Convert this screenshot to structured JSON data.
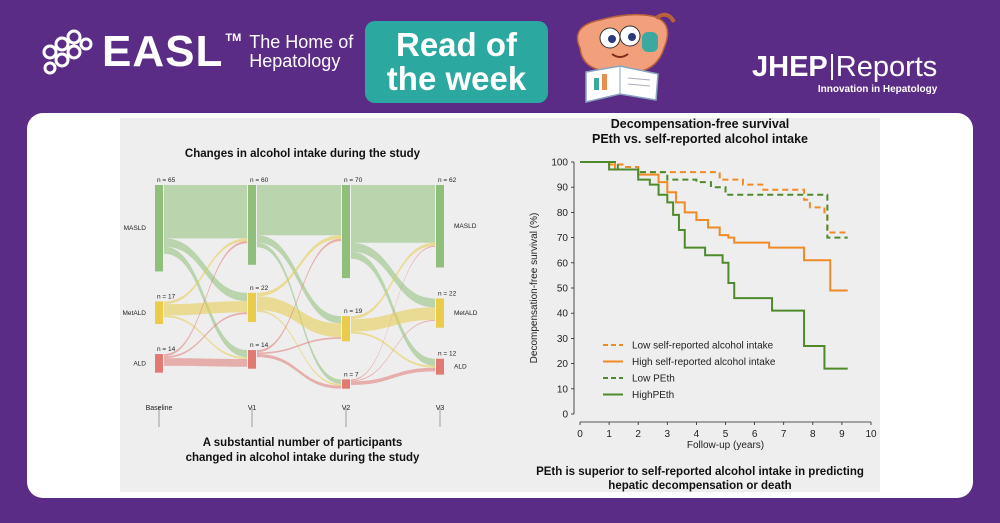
{
  "header": {
    "easl_word": "EASL",
    "easl_tm": "TM",
    "easl_tagline_line1": "The Home of",
    "easl_tagline_line2": "Hepatology",
    "badge_line1": "Read of",
    "badge_line2": "the week",
    "jhep_brand": "JHEP",
    "jhep_reports": "Reports",
    "jhep_subtitle": "Innovation in Hepatology"
  },
  "colors": {
    "background": "#5b2c86",
    "badge": "#2ba8a0",
    "masld": "#8fbf7a",
    "metald": "#e8cc4a",
    "ald": "#e07a72",
    "orange": "#f08a24",
    "green": "#4e8a2c"
  },
  "chart_data": [
    {
      "type": "sankey",
      "title": "Changes in alcohol intake during the study",
      "caption_line1": "A substantial number of participants",
      "caption_line2": "changed in alcohol intake during the study",
      "stages": [
        "Baseline",
        "V1",
        "V2",
        "V3"
      ],
      "groups": [
        "MASLD",
        "MetALD",
        "ALD"
      ],
      "counts": {
        "MASLD": [
          65,
          60,
          70,
          62
        ],
        "MetALD": [
          17,
          22,
          19,
          22
        ],
        "ALD": [
          14,
          14,
          7,
          12
        ]
      },
      "count_labels": {
        "MASLD": [
          "n = 65",
          "n = 60",
          "n = 70",
          "n = 62"
        ],
        "MetALD": [
          "n = 17",
          "n = 22",
          "n = 19",
          "n = 22"
        ],
        "ALD": [
          "n = 14",
          "n = 14",
          "n = 7",
          "n = 12"
        ]
      }
    },
    {
      "type": "line",
      "title_line1": "Decompensation-free survival",
      "title_line2": "PEth vs. self-reported alcohol intake",
      "caption_line1": "PEth is superior to self-reported alcohol intake in predicting",
      "caption_line2": "hepatic decompensation or death",
      "xlabel": "Follow-up (years)",
      "ylabel": "Decompensation-free survival (%)",
      "xlim": [
        0,
        10
      ],
      "ylim": [
        0,
        100
      ],
      "xticks": [
        0,
        1,
        2,
        3,
        4,
        5,
        6,
        7,
        8,
        9,
        10
      ],
      "yticks": [
        0,
        10,
        20,
        30,
        40,
        50,
        60,
        70,
        80,
        90,
        100
      ],
      "series": [
        {
          "name": "Low self-reported alcohol intake",
          "style": "dashed",
          "color": "#f08a24",
          "x": [
            0,
            0.9,
            1.0,
            1.5,
            2.0,
            3.3,
            4.8,
            5.0,
            5.6,
            6.3,
            7.7,
            7.9,
            8.4,
            8.5,
            9.2
          ],
          "y": [
            100,
            100,
            99,
            98,
            96,
            96,
            93,
            93,
            91,
            89,
            85,
            82,
            80,
            72,
            72
          ]
        },
        {
          "name": "High self-reported alcohol intake",
          "style": "solid",
          "color": "#f08a24",
          "x": [
            0,
            0.9,
            1.2,
            2.0,
            2.7,
            3.0,
            3.3,
            3.6,
            4.0,
            4.4,
            4.8,
            5.1,
            5.3,
            6.5,
            7.7,
            8.6,
            9.2
          ],
          "y": [
            100,
            100,
            97,
            95,
            92,
            88,
            84,
            80,
            77,
            74,
            71,
            70,
            68,
            66,
            61,
            49,
            49
          ]
        },
        {
          "name": "Low PEth",
          "style": "dashed",
          "color": "#4e8a2c",
          "x": [
            0,
            0.9,
            1.3,
            2.0,
            3.0,
            3.2,
            4.0,
            4.5,
            5.0,
            7.0,
            8.4,
            8.5,
            9.2
          ],
          "y": [
            100,
            100,
            97,
            96,
            93,
            93,
            92,
            90,
            87,
            87,
            87,
            70,
            70
          ]
        },
        {
          "name": "HighPEth",
          "style": "solid",
          "color": "#4e8a2c",
          "x": [
            0,
            0.9,
            1.0,
            2.0,
            2.4,
            2.7,
            3.0,
            3.2,
            3.4,
            3.6,
            4.3,
            4.9,
            5.1,
            5.3,
            6.6,
            7.7,
            8.4,
            9.2
          ],
          "y": [
            100,
            100,
            97,
            93,
            91,
            87,
            84,
            79,
            73,
            66,
            63,
            60,
            52,
            46,
            41,
            27,
            18,
            18
          ]
        }
      ]
    }
  ]
}
